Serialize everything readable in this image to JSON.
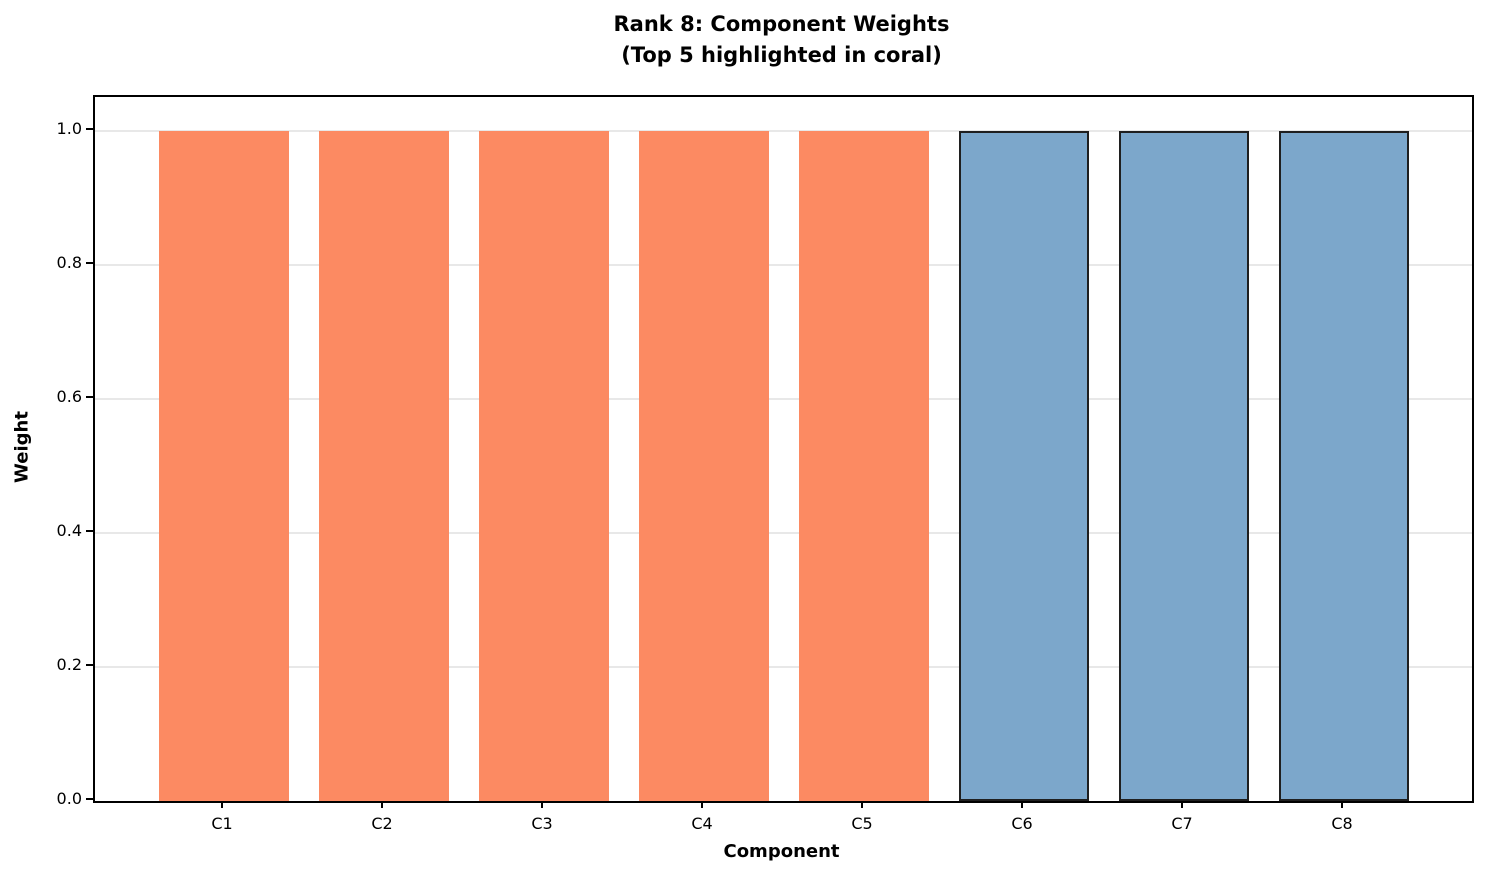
{
  "title": {
    "line1": "Rank 8: Component Weights",
    "line2": "(Top 5 highlighted in coral)"
  },
  "chart_data": {
    "type": "bar",
    "title": "Rank 8: Component Weights (Top 5 highlighted in coral)",
    "categories": [
      "C1",
      "C2",
      "C3",
      "C4",
      "C5",
      "C6",
      "C7",
      "C8"
    ],
    "values": [
      1.0,
      1.0,
      1.0,
      1.0,
      1.0,
      1.0,
      1.0,
      1.0
    ],
    "xlabel": "Component",
    "ylabel": "Weight",
    "ylim": [
      0,
      1.05
    ],
    "yticks": [
      0.0,
      0.2,
      0.4,
      0.6,
      0.8,
      1.0
    ],
    "ytick_labels": [
      "0.0",
      "0.2",
      "0.4",
      "0.6",
      "0.8",
      "1.0"
    ],
    "grid": true,
    "legend": false,
    "highlight_count": 5,
    "bar_fills": [
      "#FC8A62",
      "#FC8A62",
      "#FC8A62",
      "#FC8A62",
      "#FC8A62",
      "#7CA7CB",
      "#7CA7CB",
      "#7CA7CB"
    ],
    "bar_edges": [
      "none",
      "none",
      "none",
      "none",
      "none",
      "#1F1F1F",
      "#1F1F1F",
      "#1F1F1F"
    ],
    "colors": {
      "highlight_fill": "#FC8A62",
      "normal_fill": "#7CA7CB",
      "normal_edge": "#1F1F1F",
      "grid": "#E8E8E8",
      "spine": "#000000",
      "background": "#FFFFFF"
    }
  }
}
